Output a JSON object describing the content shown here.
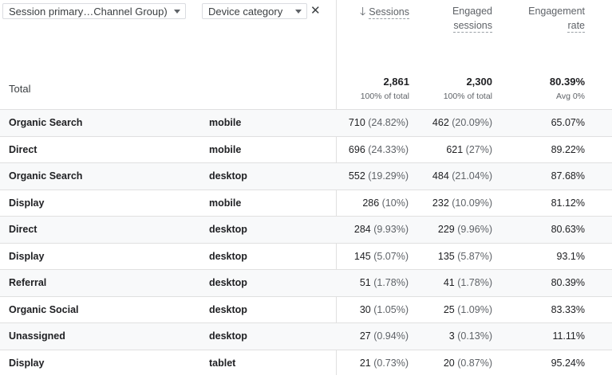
{
  "filters": {
    "dimension1": "Session primary…Channel Group)",
    "dimension2": "Device category",
    "close": "✕"
  },
  "columns": {
    "sessions": "Sessions",
    "engaged_line1": "Engaged",
    "engaged_line2": "sessions",
    "rate_line1": "Engagement",
    "rate_line2": "rate"
  },
  "totals": {
    "label": "Total",
    "sessions": "2,861",
    "sessions_sub": "100% of total",
    "engaged": "2,300",
    "engaged_sub": "100% of total",
    "rate": "80.39%",
    "rate_sub": "Avg 0%"
  },
  "rows": [
    {
      "channel": "Organic Search",
      "device": "mobile",
      "sessions": "710",
      "sessions_pct": "(24.82%)",
      "engaged": "462",
      "engaged_pct": "(20.09%)",
      "rate": "65.07%"
    },
    {
      "channel": "Direct",
      "device": "mobile",
      "sessions": "696",
      "sessions_pct": "(24.33%)",
      "engaged": "621",
      "engaged_pct": "(27%)",
      "rate": "89.22%"
    },
    {
      "channel": "Organic Search",
      "device": "desktop",
      "sessions": "552",
      "sessions_pct": "(19.29%)",
      "engaged": "484",
      "engaged_pct": "(21.04%)",
      "rate": "87.68%"
    },
    {
      "channel": "Display",
      "device": "mobile",
      "sessions": "286",
      "sessions_pct": "(10%)",
      "engaged": "232",
      "engaged_pct": "(10.09%)",
      "rate": "81.12%"
    },
    {
      "channel": "Direct",
      "device": "desktop",
      "sessions": "284",
      "sessions_pct": "(9.93%)",
      "engaged": "229",
      "engaged_pct": "(9.96%)",
      "rate": "80.63%"
    },
    {
      "channel": "Display",
      "device": "desktop",
      "sessions": "145",
      "sessions_pct": "(5.07%)",
      "engaged": "135",
      "engaged_pct": "(5.87%)",
      "rate": "93.1%"
    },
    {
      "channel": "Referral",
      "device": "desktop",
      "sessions": "51",
      "sessions_pct": "(1.78%)",
      "engaged": "41",
      "engaged_pct": "(1.78%)",
      "rate": "80.39%"
    },
    {
      "channel": "Organic Social",
      "device": "desktop",
      "sessions": "30",
      "sessions_pct": "(1.05%)",
      "engaged": "25",
      "engaged_pct": "(1.09%)",
      "rate": "83.33%"
    },
    {
      "channel": "Unassigned",
      "device": "desktop",
      "sessions": "27",
      "sessions_pct": "(0.94%)",
      "engaged": "3",
      "engaged_pct": "(0.13%)",
      "rate": "11.11%"
    },
    {
      "channel": "Display",
      "device": "tablet",
      "sessions": "21",
      "sessions_pct": "(0.73%)",
      "engaged": "20",
      "engaged_pct": "(0.87%)",
      "rate": "95.24%"
    }
  ]
}
